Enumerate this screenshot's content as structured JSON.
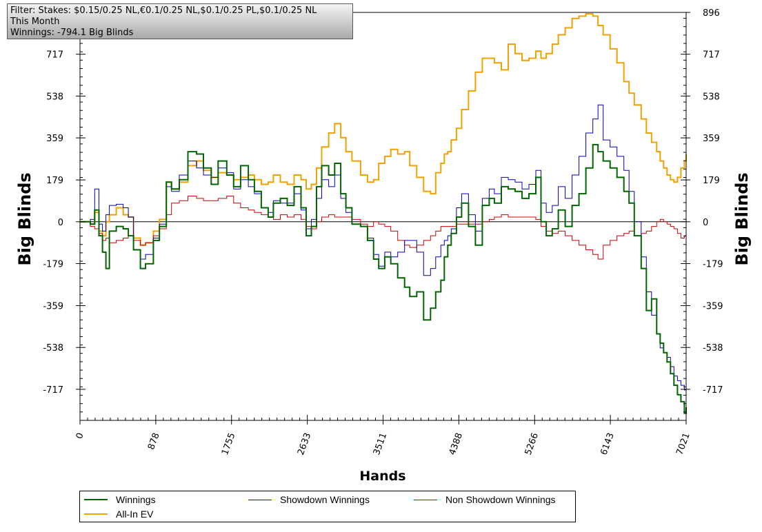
{
  "filter": {
    "lines": [
      "Filter: Stakes: $0.15/0.25 NL,€0.1/0.25 NL,$0.1/0.25 PL,$0.1/0.25 NL",
      "This Month",
      "Winnings: -794.1 Big Blinds"
    ]
  },
  "chart_data": {
    "type": "line",
    "xlabel": "Hands",
    "ylabel": "Big Blinds",
    "xlim": [
      0,
      7021
    ],
    "ylim": [
      -850,
      896
    ],
    "x_ticks": [
      0,
      878,
      1755,
      2633,
      3511,
      4388,
      5266,
      6143,
      7021
    ],
    "y_ticks": [
      -717,
      -538,
      -359,
      -179,
      0,
      179,
      359,
      538,
      717,
      896
    ],
    "legend_position": "bottom",
    "series": [
      {
        "name": "Winnings",
        "color": "#006400",
        "x": [
          0,
          120,
          170,
          220,
          260,
          300,
          340,
          420,
          500,
          560,
          620,
          700,
          760,
          850,
          920,
          1000,
          1060,
          1150,
          1250,
          1350,
          1430,
          1520,
          1600,
          1700,
          1780,
          1860,
          1950,
          2020,
          2100,
          2180,
          2240,
          2320,
          2400,
          2480,
          2560,
          2620,
          2680,
          2740,
          2800,
          2880,
          2950,
          3020,
          3080,
          3150,
          3250,
          3330,
          3400,
          3460,
          3530,
          3600,
          3680,
          3760,
          3820,
          3900,
          3980,
          4060,
          4120,
          4180,
          4220,
          4260,
          4300,
          4360,
          4420,
          4500,
          4580,
          4660,
          4740,
          4800,
          4880,
          4960,
          5040,
          5120,
          5200,
          5280,
          5340,
          5400,
          5470,
          5540,
          5620,
          5700,
          5780,
          5860,
          5940,
          6000,
          6060,
          6140,
          6220,
          6300,
          6360,
          6420,
          6500,
          6560,
          6620,
          6680,
          6720,
          6760,
          6800,
          6840,
          6880,
          6920,
          6960,
          7000,
          7021
        ],
        "y": [
          0,
          -10,
          50,
          -60,
          -130,
          -200,
          -40,
          -20,
          -30,
          -60,
          -120,
          -200,
          -180,
          -80,
          -20,
          170,
          140,
          180,
          300,
          290,
          230,
          160,
          260,
          200,
          150,
          240,
          180,
          130,
          60,
          20,
          80,
          100,
          70,
          150,
          60,
          -60,
          -20,
          150,
          240,
          200,
          250,
          120,
          60,
          -10,
          -20,
          -80,
          -160,
          -200,
          -150,
          -180,
          -240,
          -280,
          -320,
          -300,
          -420,
          -370,
          -300,
          -250,
          -150,
          -100,
          -50,
          20,
          80,
          -20,
          -100,
          70,
          100,
          80,
          150,
          140,
          130,
          100,
          120,
          190,
          0,
          -60,
          -30,
          50,
          -20,
          70,
          120,
          230,
          330,
          300,
          260,
          230,
          190,
          130,
          80,
          -60,
          -200,
          -380,
          -330,
          -480,
          -520,
          -560,
          -600,
          -650,
          -700,
          -740,
          -770,
          -820,
          -794
        ]
      },
      {
        "name": "Showdown Winnings",
        "color": "#0000b4",
        "x": [
          0,
          120,
          170,
          220,
          260,
          300,
          340,
          420,
          500,
          560,
          620,
          700,
          760,
          850,
          920,
          1000,
          1060,
          1150,
          1250,
          1350,
          1430,
          1520,
          1600,
          1700,
          1780,
          1860,
          1950,
          2020,
          2100,
          2180,
          2240,
          2320,
          2400,
          2480,
          2560,
          2620,
          2680,
          2740,
          2800,
          2880,
          2950,
          3020,
          3080,
          3150,
          3250,
          3330,
          3400,
          3460,
          3530,
          3600,
          3680,
          3760,
          3820,
          3900,
          3980,
          4060,
          4120,
          4180,
          4220,
          4260,
          4300,
          4360,
          4420,
          4500,
          4580,
          4660,
          4740,
          4800,
          4880,
          4960,
          5040,
          5120,
          5200,
          5280,
          5340,
          5400,
          5470,
          5540,
          5620,
          5700,
          5780,
          5860,
          5940,
          6000,
          6060,
          6140,
          6220,
          6300,
          6360,
          6420,
          6500,
          6560,
          6620,
          6680,
          6720,
          6760,
          6800,
          6840,
          6880,
          6920,
          6960,
          7000,
          7021
        ],
        "y": [
          0,
          10,
          140,
          -10,
          -40,
          30,
          70,
          75,
          60,
          20,
          -120,
          -160,
          -140,
          -70,
          -10,
          150,
          130,
          200,
          260,
          230,
          200,
          190,
          230,
          210,
          140,
          180,
          150,
          120,
          60,
          40,
          90,
          80,
          80,
          120,
          50,
          -30,
          10,
          100,
          180,
          150,
          200,
          100,
          40,
          -10,
          -20,
          -70,
          -140,
          -190,
          -130,
          -150,
          -130,
          -80,
          -80,
          -130,
          -230,
          -200,
          -150,
          -100,
          -80,
          -60,
          -30,
          60,
          120,
          30,
          -40,
          100,
          140,
          120,
          190,
          180,
          170,
          140,
          160,
          220,
          80,
          40,
          70,
          150,
          100,
          200,
          280,
          380,
          440,
          500,
          350,
          320,
          280,
          220,
          130,
          0,
          -150,
          -300,
          -400,
          -480,
          -540,
          -560,
          -580,
          -620,
          -660,
          -680,
          -700,
          -720,
          -720
        ]
      },
      {
        "name": "Non Showdown Winnings",
        "color": "#c80000",
        "x": [
          0,
          120,
          170,
          220,
          260,
          300,
          340,
          420,
          500,
          560,
          620,
          700,
          760,
          850,
          920,
          1000,
          1060,
          1150,
          1250,
          1350,
          1430,
          1520,
          1600,
          1700,
          1780,
          1860,
          1950,
          2020,
          2100,
          2180,
          2240,
          2320,
          2400,
          2480,
          2560,
          2620,
          2680,
          2740,
          2800,
          2880,
          2950,
          3020,
          3080,
          3150,
          3250,
          3330,
          3400,
          3460,
          3530,
          3600,
          3680,
          3760,
          3820,
          3900,
          3980,
          4060,
          4120,
          4180,
          4220,
          4260,
          4300,
          4360,
          4420,
          4500,
          4580,
          4660,
          4740,
          4800,
          4880,
          4960,
          5040,
          5120,
          5200,
          5280,
          5340,
          5400,
          5470,
          5540,
          5620,
          5700,
          5780,
          5860,
          5940,
          6000,
          6060,
          6140,
          6220,
          6300,
          6360,
          6420,
          6500,
          6560,
          6620,
          6680,
          6720,
          6760,
          6800,
          6840,
          6880,
          6920,
          6960,
          7000,
          7021
        ],
        "y": [
          0,
          -20,
          -30,
          -50,
          -80,
          -70,
          -90,
          -80,
          -70,
          -60,
          -80,
          -100,
          -90,
          -60,
          -30,
          30,
          80,
          90,
          110,
          100,
          90,
          90,
          100,
          110,
          80,
          60,
          50,
          40,
          30,
          20,
          10,
          30,
          20,
          30,
          10,
          -20,
          -30,
          0,
          20,
          30,
          20,
          20,
          20,
          10,
          -10,
          -20,
          0,
          -10,
          -20,
          -40,
          -80,
          -100,
          -110,
          -100,
          -80,
          -60,
          -40,
          -20,
          -20,
          -20,
          -20,
          -10,
          -10,
          -10,
          -10,
          0,
          10,
          20,
          30,
          20,
          20,
          20,
          20,
          10,
          -20,
          -40,
          -50,
          -40,
          -60,
          -80,
          -100,
          -120,
          -140,
          -160,
          -100,
          -80,
          -60,
          -50,
          -40,
          -60,
          -50,
          -40,
          -20,
          0,
          10,
          0,
          -10,
          -20,
          -30,
          -50,
          -70,
          -60,
          -30
        ]
      },
      {
        "name": "All-In EV",
        "color": "#f0a000",
        "x": [
          0,
          120,
          170,
          220,
          260,
          300,
          340,
          420,
          500,
          560,
          620,
          700,
          760,
          850,
          920,
          1000,
          1060,
          1150,
          1250,
          1350,
          1430,
          1520,
          1600,
          1700,
          1780,
          1860,
          1950,
          2020,
          2100,
          2180,
          2240,
          2320,
          2400,
          2480,
          2560,
          2620,
          2680,
          2740,
          2800,
          2880,
          2950,
          3020,
          3080,
          3150,
          3250,
          3330,
          3400,
          3460,
          3530,
          3600,
          3680,
          3760,
          3820,
          3900,
          3980,
          4060,
          4120,
          4180,
          4220,
          4260,
          4300,
          4360,
          4420,
          4500,
          4580,
          4660,
          4740,
          4800,
          4880,
          4960,
          5040,
          5120,
          5200,
          5280,
          5340,
          5400,
          5470,
          5540,
          5620,
          5700,
          5780,
          5860,
          5940,
          6000,
          6060,
          6140,
          6220,
          6300,
          6360,
          6420,
          6500,
          6560,
          6620,
          6680,
          6720,
          6760,
          6800,
          6840,
          6880,
          6920,
          6960,
          7000,
          7021
        ],
        "y": [
          0,
          -10,
          40,
          -40,
          -60,
          0,
          30,
          60,
          30,
          20,
          -70,
          -100,
          -90,
          -40,
          10,
          170,
          140,
          170,
          240,
          260,
          220,
          190,
          210,
          200,
          180,
          190,
          200,
          180,
          160,
          170,
          200,
          170,
          160,
          200,
          180,
          140,
          160,
          230,
          320,
          380,
          420,
          360,
          300,
          260,
          200,
          170,
          180,
          250,
          280,
          310,
          290,
          300,
          240,
          190,
          130,
          120,
          210,
          250,
          290,
          300,
          350,
          400,
          480,
          560,
          640,
          700,
          700,
          680,
          650,
          760,
          720,
          690,
          700,
          730,
          700,
          720,
          760,
          800,
          830,
          870,
          880,
          890,
          880,
          840,
          800,
          740,
          680,
          600,
          550,
          500,
          440,
          380,
          340,
          300,
          260,
          230,
          200,
          180,
          170,
          190,
          230,
          260,
          290
        ]
      }
    ]
  }
}
